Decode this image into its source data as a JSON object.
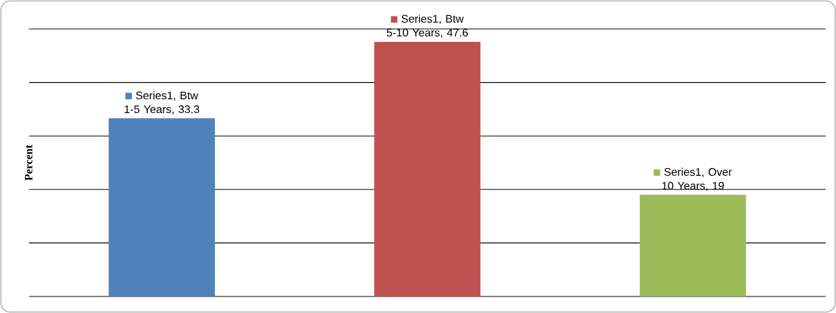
{
  "chart_data": {
    "type": "bar",
    "ylabel": "Percent",
    "categories": [
      null,
      null,
      null
    ],
    "values": [
      33.3,
      47.6,
      19
    ],
    "colors": [
      "#4f81bd",
      "#c0504d",
      "#9bbb59"
    ],
    "value_labels": [
      "Series1, Btw 1-5 Years, 33.3",
      "Series1, Btw 5-10 Years, 47.6",
      "Series1, Over 10 Years, 19"
    ],
    "ylim": [
      0,
      50
    ],
    "yticks": [
      0,
      10,
      20,
      30,
      40,
      50
    ],
    "grid": "y",
    "tick_labels": false
  }
}
